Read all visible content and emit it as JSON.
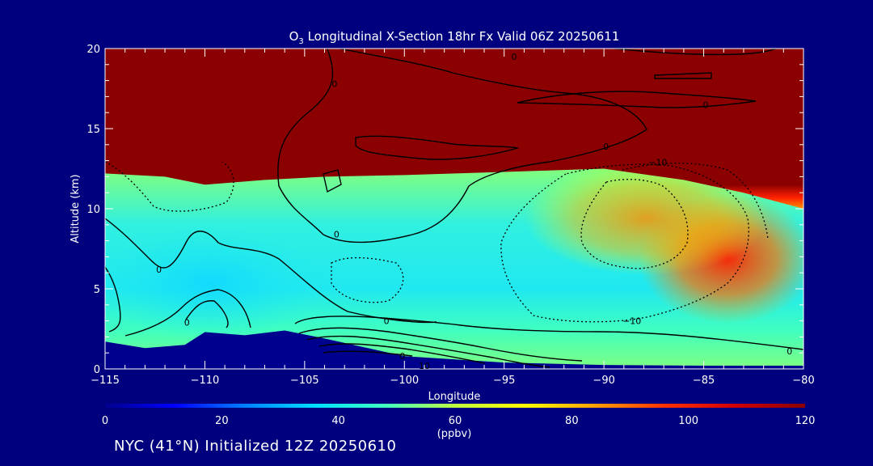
{
  "chart_data": {
    "type": "heatmap",
    "title": {
      "main": "O",
      "sub": "3",
      "rest": " Longitudinal X-Section 18hr  Fx Valid 06Z 20250611"
    },
    "xlabel": "Longitude",
    "ylabel": "Altitude (km)",
    "xlim": [
      -115,
      -80
    ],
    "ylim": [
      0,
      20
    ],
    "xticks": [
      -115,
      -110,
      -105,
      -100,
      -95,
      -90,
      -85,
      -80
    ],
    "xtick_labels": [
      "−115",
      "−110",
      "−105",
      "−100",
      "−95",
      "−90",
      "−85",
      "−80"
    ],
    "yticks": [
      0,
      5,
      10,
      15,
      20
    ],
    "ytick_labels": [
      "0",
      "5",
      "10",
      "15",
      "20"
    ],
    "colorbar": {
      "range": [
        0,
        120
      ],
      "ticks": [
        "0",
        "20",
        "40",
        "60",
        "80",
        "100",
        "120"
      ],
      "unit": "(ppbv)",
      "colors": [
        "#00008f",
        "#0000ff",
        "#0080ff",
        "#00e0ff",
        "#40ffc0",
        "#c0ff40",
        "#ffff00",
        "#ffa000",
        "#ff3000",
        "#d00000",
        "#8b0000"
      ]
    },
    "ozone_tropopause_km": [
      {
        "lon": -115,
        "alt": 12.2
      },
      {
        "lon": -112,
        "alt": 12.0
      },
      {
        "lon": -110,
        "alt": 11.5
      },
      {
        "lon": -107,
        "alt": 11.8
      },
      {
        "lon": -104,
        "alt": 12.0
      },
      {
        "lon": -100,
        "alt": 12.1
      },
      {
        "lon": -95,
        "alt": 12.3
      },
      {
        "lon": -90,
        "alt": 12.5
      },
      {
        "lon": -86,
        "alt": 11.8
      },
      {
        "lon": -83,
        "alt": 11.0
      },
      {
        "lon": -80,
        "alt": 10.0
      }
    ],
    "terrain_km": [
      {
        "lon": -115,
        "alt": 1.7
      },
      {
        "lon": -113,
        "alt": 1.3
      },
      {
        "lon": -111,
        "alt": 1.5
      },
      {
        "lon": -110,
        "alt": 2.3
      },
      {
        "lon": -108,
        "alt": 2.1
      },
      {
        "lon": -106,
        "alt": 2.4
      },
      {
        "lon": -104,
        "alt": 1.9
      },
      {
        "lon": -100,
        "alt": 0.8
      },
      {
        "lon": -95,
        "alt": 0.4
      },
      {
        "lon": -90,
        "alt": 0.25
      },
      {
        "lon": -85,
        "alt": 0.2
      },
      {
        "lon": -80,
        "alt": 0.2
      }
    ],
    "contour_labels": [
      {
        "text": "0",
        "lon": -94.5,
        "alt": 19.5
      },
      {
        "text": "0",
        "lon": -103.5,
        "alt": 17.8
      },
      {
        "text": "0",
        "lon": -84.9,
        "alt": 16.5
      },
      {
        "text": "0",
        "lon": -89.9,
        "alt": 13.9
      },
      {
        "text": "0",
        "lon": -103.4,
        "alt": 8.4
      },
      {
        "text": "0",
        "lon": -112.3,
        "alt": 6.2
      },
      {
        "text": "0",
        "lon": -110.9,
        "alt": 2.9
      },
      {
        "text": "0",
        "lon": -100.9,
        "alt": 3.0
      },
      {
        "text": "0",
        "lon": -100.1,
        "alt": 0.8
      },
      {
        "text": "0",
        "lon": -80.7,
        "alt": 1.1
      },
      {
        "text": "−10",
        "lon": -87.3,
        "alt": 12.9
      },
      {
        "text": "−10",
        "lon": -88.6,
        "alt": 3.0
      },
      {
        "text": "10",
        "lon": -99.0,
        "alt": 0.2
      }
    ]
  },
  "footer": {
    "text": "NYC (41°N) Initialized 12Z 20250610"
  }
}
